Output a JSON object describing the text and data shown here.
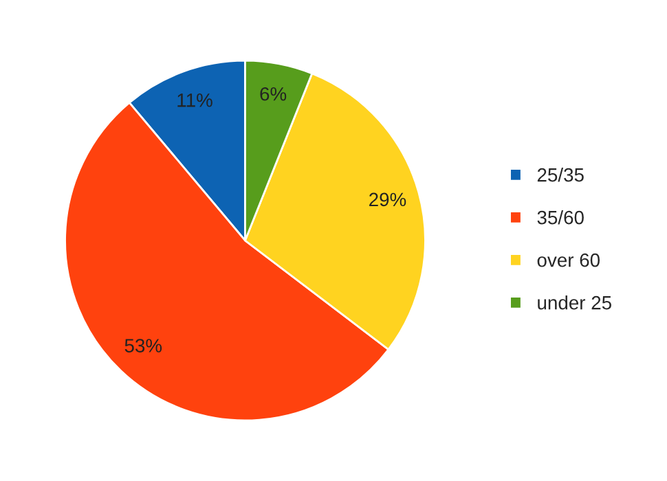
{
  "chart_data": {
    "type": "pie",
    "categories": [
      "25/35",
      "35/60",
      "over 60",
      "under 25"
    ],
    "values": [
      11,
      53,
      29,
      6
    ],
    "colors": [
      "#0d63b3",
      "#ff420e",
      "#ffd320",
      "#579d1c"
    ],
    "value_labels": [
      "11%",
      "53%",
      "29%",
      "6%"
    ],
    "legend": "right"
  }
}
